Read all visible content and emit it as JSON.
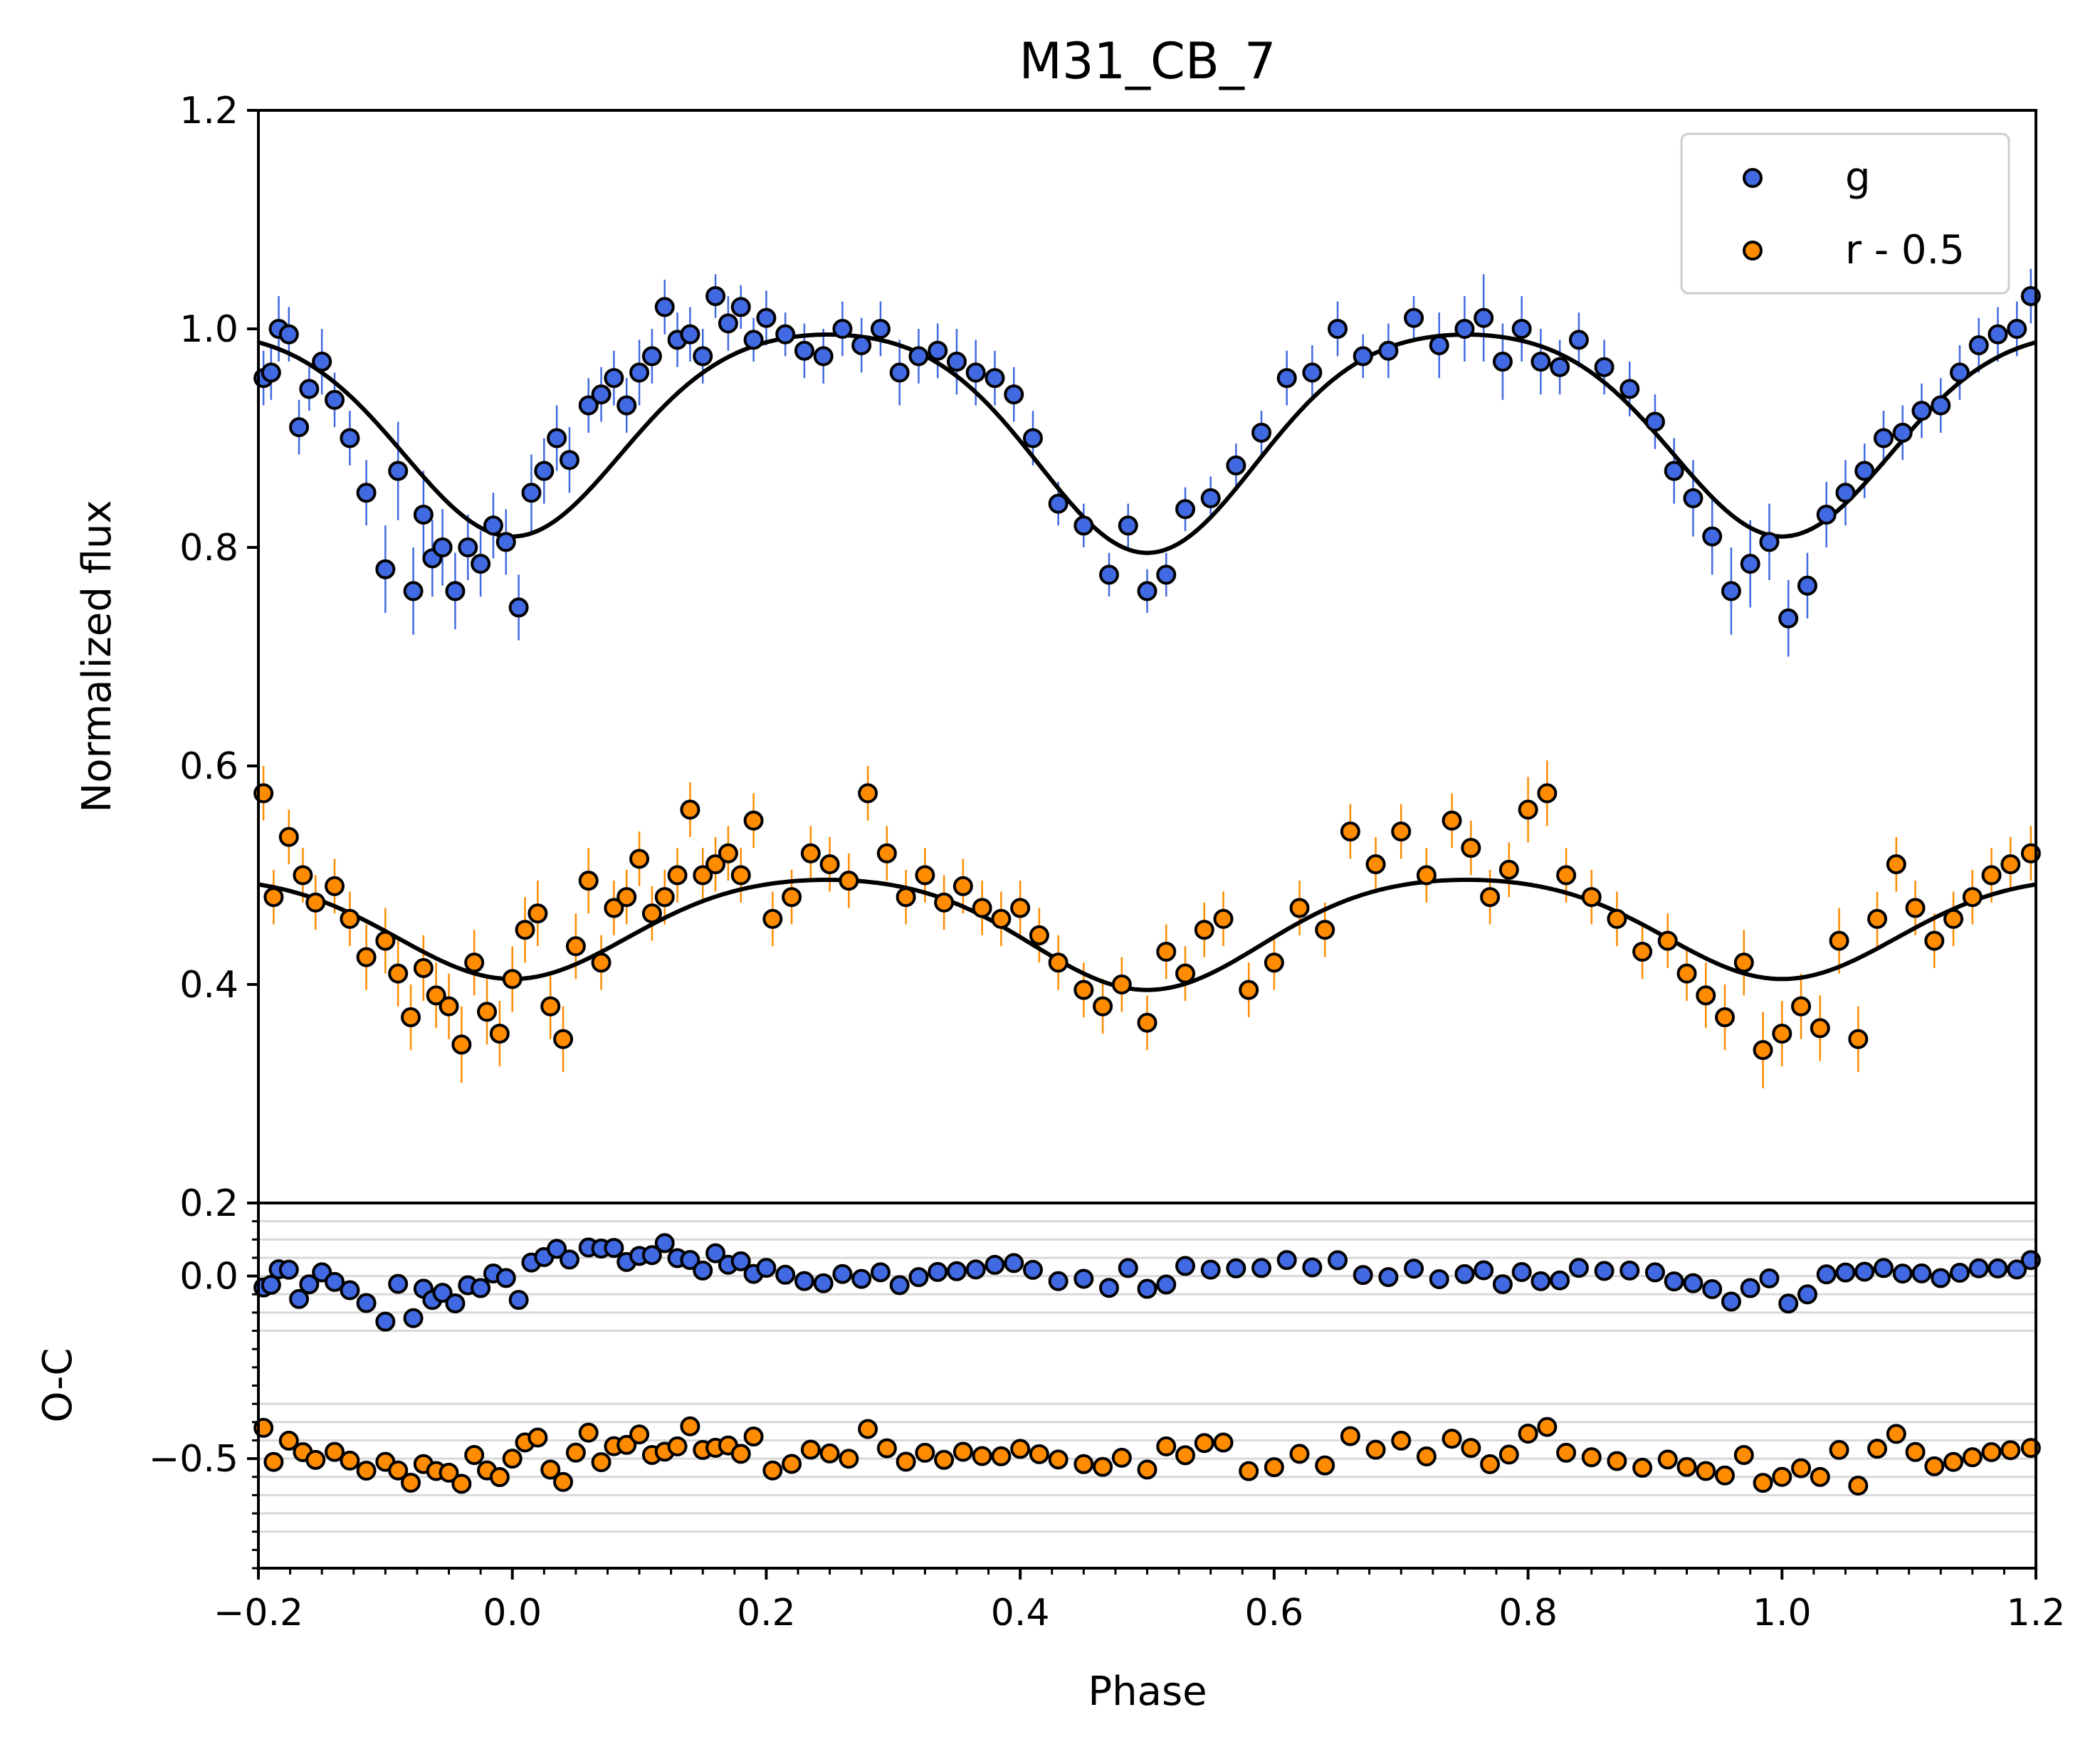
{
  "chart_data": {
    "type": "scatter",
    "title": "M31_CB_7",
    "xlabel": "Phase",
    "xlim": [
      -0.2,
      1.2
    ],
    "xticks": [
      -0.2,
      0.0,
      0.2,
      0.4,
      0.6,
      0.8,
      1.0,
      1.2
    ],
    "xtick_labels": [
      "−0.2",
      "0.0",
      "0.2",
      "0.4",
      "0.6",
      "0.8",
      "1.0",
      "1.2"
    ],
    "legend_position": "top-right",
    "panels": {
      "main": {
        "ylabel": "Normalized flux",
        "ylim": [
          0.2,
          1.2
        ],
        "yticks": [
          0.2,
          0.4,
          0.6,
          0.8,
          1.0,
          1.2
        ],
        "ytick_labels": [
          "0.2",
          "0.4",
          "0.6",
          "0.8",
          "1.0",
          "1.2"
        ]
      },
      "residual": {
        "ylabel": "O-C",
        "ylim": [
          -0.8,
          0.2
        ],
        "yticks": [
          -0.5,
          0.0
        ],
        "ytick_labels": [
          "−0.5",
          "0.0"
        ],
        "grid_lines": [
          0.15,
          0.1,
          0.05,
          0.0,
          -0.05,
          -0.1,
          -0.15,
          -0.35,
          -0.4,
          -0.45,
          -0.5,
          -0.55,
          -0.6,
          -0.65,
          -0.7
        ]
      }
    },
    "series": [
      {
        "name": "g",
        "label": "g",
        "color": "#4169e1",
        "model": {
          "base": 1.0,
          "primary_depth": 0.19,
          "primary_phase": 0.0,
          "secondary_depth": 0.205,
          "secondary_phase": 0.5,
          "width": 0.085
        },
        "offset": 0.0,
        "phase": [
          -0.196,
          -0.19,
          -0.184,
          -0.176,
          -0.168,
          -0.16,
          -0.15,
          -0.14,
          -0.128,
          -0.115,
          -0.1,
          -0.09,
          -0.078,
          -0.07,
          -0.063,
          -0.055,
          -0.045,
          -0.035,
          -0.025,
          -0.015,
          -0.005,
          0.005,
          0.015,
          0.025,
          0.035,
          0.045,
          0.06,
          0.07,
          0.08,
          0.09,
          0.1,
          0.11,
          0.12,
          0.13,
          0.14,
          0.15,
          0.16,
          0.17,
          0.18,
          0.19,
          0.2,
          0.215,
          0.23,
          0.245,
          0.26,
          0.275,
          0.29,
          0.305,
          0.32,
          0.335,
          0.35,
          0.365,
          0.38,
          0.395,
          0.41,
          0.43,
          0.45,
          0.47,
          0.485,
          0.5,
          0.515,
          0.53,
          0.55,
          0.57,
          0.59,
          0.61,
          0.63,
          0.65,
          0.67,
          0.69,
          0.71,
          0.73,
          0.75,
          0.765,
          0.78,
          0.795,
          0.81,
          0.825,
          0.84,
          0.86,
          0.88,
          0.9,
          0.915,
          0.93,
          0.945,
          0.96,
          0.975,
          0.99,
          1.005,
          1.02,
          1.035,
          1.05,
          1.065,
          1.08,
          1.095,
          1.11,
          1.125,
          1.14,
          1.155,
          1.17,
          1.185,
          1.196
        ],
        "flux": [
          0.955,
          0.96,
          1.0,
          0.995,
          0.91,
          0.945,
          0.97,
          0.935,
          0.9,
          0.85,
          0.78,
          0.87,
          0.76,
          0.83,
          0.79,
          0.8,
          0.76,
          0.8,
          0.785,
          0.82,
          0.805,
          0.745,
          0.85,
          0.87,
          0.9,
          0.88,
          0.93,
          0.94,
          0.955,
          0.93,
          0.96,
          0.975,
          1.02,
          0.99,
          0.995,
          0.975,
          1.03,
          1.005,
          1.02,
          0.99,
          1.01,
          0.995,
          0.98,
          0.975,
          1.0,
          0.985,
          1.0,
          0.96,
          0.975,
          0.98,
          0.97,
          0.96,
          0.955,
          0.94,
          0.9,
          0.84,
          0.82,
          0.775,
          0.82,
          0.76,
          0.775,
          0.835,
          0.845,
          0.875,
          0.905,
          0.955,
          0.96,
          1.0,
          0.975,
          0.98,
          1.01,
          0.985,
          1.0,
          1.01,
          0.97,
          1.0,
          0.97,
          0.965,
          0.99,
          0.965,
          0.945,
          0.915,
          0.87,
          0.845,
          0.81,
          0.76,
          0.785,
          0.805,
          0.735,
          0.765,
          0.83,
          0.85,
          0.87,
          0.9,
          0.905,
          0.925,
          0.93,
          0.96,
          0.985,
          0.995,
          1.0,
          1.03
        ],
        "err": [
          0.025,
          0.025,
          0.03,
          0.025,
          0.025,
          0.02,
          0.03,
          0.025,
          0.025,
          0.03,
          0.04,
          0.045,
          0.04,
          0.04,
          0.035,
          0.035,
          0.035,
          0.03,
          0.03,
          0.03,
          0.03,
          0.03,
          0.035,
          0.03,
          0.03,
          0.03,
          0.025,
          0.025,
          0.025,
          0.025,
          0.03,
          0.025,
          0.025,
          0.025,
          0.025,
          0.025,
          0.02,
          0.025,
          0.02,
          0.02,
          0.025,
          0.02,
          0.025,
          0.025,
          0.025,
          0.025,
          0.025,
          0.03,
          0.025,
          0.025,
          0.03,
          0.03,
          0.025,
          0.025,
          0.025,
          0.02,
          0.02,
          0.02,
          0.02,
          0.02,
          0.02,
          0.02,
          0.02,
          0.02,
          0.02,
          0.025,
          0.025,
          0.025,
          0.02,
          0.025,
          0.02,
          0.03,
          0.03,
          0.04,
          0.035,
          0.03,
          0.03,
          0.025,
          0.025,
          0.025,
          0.025,
          0.025,
          0.03,
          0.035,
          0.035,
          0.04,
          0.04,
          0.035,
          0.035,
          0.03,
          0.03,
          0.03,
          0.025,
          0.025,
          0.025,
          0.025,
          0.025,
          0.025,
          0.025,
          0.025,
          0.025,
          0.025
        ]
      },
      {
        "name": "r - 0.5",
        "label": "r - 0.5",
        "color": "#ff8c00",
        "model": {
          "base": 0.5,
          "primary_depth": 0.095,
          "primary_phase": 0.0,
          "secondary_depth": 0.105,
          "secondary_phase": 0.5,
          "width": 0.09
        },
        "offset": -0.5,
        "phase": [
          -0.196,
          -0.188,
          -0.176,
          -0.165,
          -0.155,
          -0.14,
          -0.128,
          -0.115,
          -0.1,
          -0.09,
          -0.08,
          -0.07,
          -0.06,
          -0.05,
          -0.04,
          -0.03,
          -0.02,
          -0.01,
          0.0,
          0.01,
          0.02,
          0.03,
          0.04,
          0.05,
          0.06,
          0.07,
          0.08,
          0.09,
          0.1,
          0.11,
          0.12,
          0.13,
          0.14,
          0.15,
          0.16,
          0.17,
          0.18,
          0.19,
          0.205,
          0.22,
          0.235,
          0.25,
          0.265,
          0.28,
          0.295,
          0.31,
          0.325,
          0.34,
          0.355,
          0.37,
          0.385,
          0.4,
          0.415,
          0.43,
          0.45,
          0.465,
          0.48,
          0.5,
          0.515,
          0.53,
          0.545,
          0.56,
          0.58,
          0.6,
          0.62,
          0.64,
          0.66,
          0.68,
          0.7,
          0.72,
          0.74,
          0.755,
          0.77,
          0.785,
          0.8,
          0.815,
          0.83,
          0.85,
          0.87,
          0.89,
          0.91,
          0.925,
          0.94,
          0.955,
          0.97,
          0.985,
          1.0,
          1.015,
          1.03,
          1.045,
          1.06,
          1.075,
          1.09,
          1.105,
          1.12,
          1.135,
          1.15,
          1.165,
          1.18,
          1.196
        ],
        "flux": [
          0.575,
          0.48,
          0.535,
          0.5,
          0.475,
          0.49,
          0.46,
          0.425,
          0.44,
          0.41,
          0.37,
          0.415,
          0.39,
          0.38,
          0.345,
          0.42,
          0.375,
          0.355,
          0.405,
          0.45,
          0.465,
          0.38,
          0.35,
          0.435,
          0.495,
          0.42,
          0.47,
          0.48,
          0.515,
          0.465,
          0.48,
          0.5,
          0.56,
          0.5,
          0.51,
          0.52,
          0.5,
          0.55,
          0.46,
          0.48,
          0.52,
          0.51,
          0.495,
          0.575,
          0.52,
          0.48,
          0.5,
          0.475,
          0.49,
          0.47,
          0.46,
          0.47,
          0.445,
          0.42,
          0.395,
          0.38,
          0.4,
          0.365,
          0.43,
          0.41,
          0.45,
          0.46,
          0.395,
          0.42,
          0.47,
          0.45,
          0.54,
          0.51,
          0.54,
          0.5,
          0.55,
          0.525,
          0.48,
          0.505,
          0.56,
          0.575,
          0.5,
          0.48,
          0.46,
          0.43,
          0.44,
          0.41,
          0.39,
          0.37,
          0.42,
          0.34,
          0.355,
          0.38,
          0.36,
          0.44,
          0.35,
          0.46,
          0.51,
          0.47,
          0.44,
          0.46,
          0.48,
          0.5,
          0.51,
          0.52
        ],
        "err": [
          0.025,
          0.025,
          0.025,
          0.025,
          0.025,
          0.025,
          0.025,
          0.03,
          0.03,
          0.03,
          0.03,
          0.03,
          0.03,
          0.03,
          0.035,
          0.03,
          0.03,
          0.03,
          0.03,
          0.03,
          0.03,
          0.03,
          0.03,
          0.03,
          0.03,
          0.025,
          0.025,
          0.025,
          0.025,
          0.025,
          0.025,
          0.025,
          0.025,
          0.025,
          0.025,
          0.025,
          0.025,
          0.025,
          0.025,
          0.025,
          0.025,
          0.025,
          0.025,
          0.025,
          0.025,
          0.025,
          0.025,
          0.025,
          0.025,
          0.025,
          0.025,
          0.025,
          0.025,
          0.025,
          0.025,
          0.025,
          0.025,
          0.025,
          0.025,
          0.025,
          0.025,
          0.025,
          0.025,
          0.025,
          0.025,
          0.025,
          0.025,
          0.025,
          0.025,
          0.025,
          0.025,
          0.025,
          0.025,
          0.025,
          0.03,
          0.03,
          0.025,
          0.025,
          0.025,
          0.025,
          0.025,
          0.025,
          0.03,
          0.03,
          0.03,
          0.035,
          0.03,
          0.03,
          0.03,
          0.03,
          0.03,
          0.025,
          0.025,
          0.025,
          0.025,
          0.025,
          0.025,
          0.025,
          0.025,
          0.025
        ]
      }
    ]
  }
}
